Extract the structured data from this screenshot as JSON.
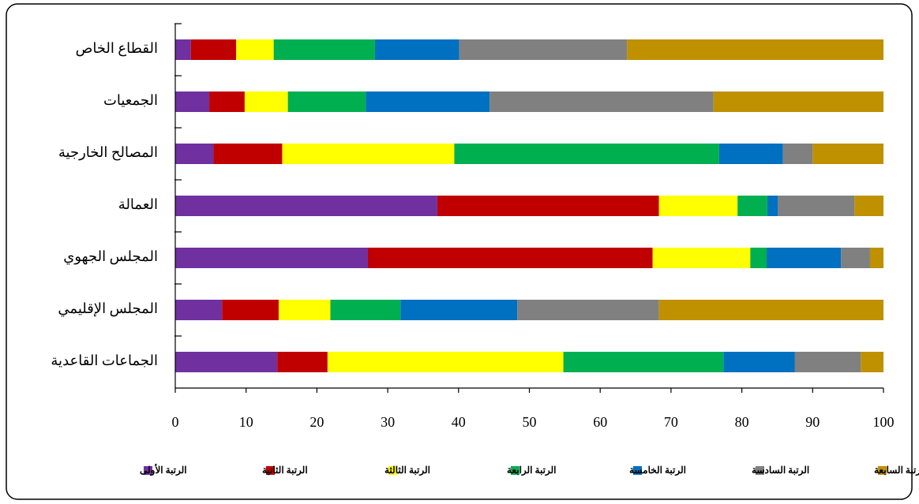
{
  "chart_data": {
    "type": "bar",
    "orientation": "horizontal",
    "stacked": true,
    "categories": [
      "القطاع الخاص",
      "الجمعيات",
      "المصالح الخارجية",
      "العمالة",
      "المجلس الجهوي",
      "المجلس الإقليمي",
      "الجماعات القاعدية"
    ],
    "series": [
      {
        "name": "الرتبة الأولى",
        "color": "#7030a0",
        "values": [
          2.2,
          4.8,
          5.4,
          37.0,
          27.2,
          6.6,
          14.4
        ]
      },
      {
        "name": "الرتبة الثانية",
        "color": "#c00000",
        "values": [
          6.4,
          5.0,
          9.7,
          31.3,
          40.2,
          8.0,
          7.1
        ]
      },
      {
        "name": "الرتبة الثالثة",
        "color": "#ffff00",
        "values": [
          5.3,
          6.1,
          24.3,
          11.1,
          13.8,
          7.3,
          33.3
        ]
      },
      {
        "name": "الرتبة الرابعة",
        "color": "#00b050",
        "values": [
          14.3,
          11.0,
          37.4,
          4.2,
          2.3,
          9.9,
          22.6
        ]
      },
      {
        "name": "الرتبة الخامسة",
        "color": "#0070c0",
        "values": [
          11.9,
          17.5,
          9.0,
          1.5,
          10.5,
          16.5,
          10.1
        ]
      },
      {
        "name": "الرتبة السادسة",
        "color": "#808080",
        "values": [
          23.7,
          31.6,
          4.2,
          10.8,
          4.1,
          20.0,
          9.3
        ]
      },
      {
        "name": "الرتبة السابعة",
        "color": "#bf9000",
        "values": [
          36.2,
          24.0,
          10.0,
          4.1,
          1.9,
          31.7,
          3.2
        ]
      }
    ],
    "xlim": [
      0,
      100
    ],
    "xticks": [
      0,
      10,
      20,
      30,
      40,
      50,
      60,
      70,
      80,
      90,
      100
    ],
    "legend": "bottom"
  }
}
